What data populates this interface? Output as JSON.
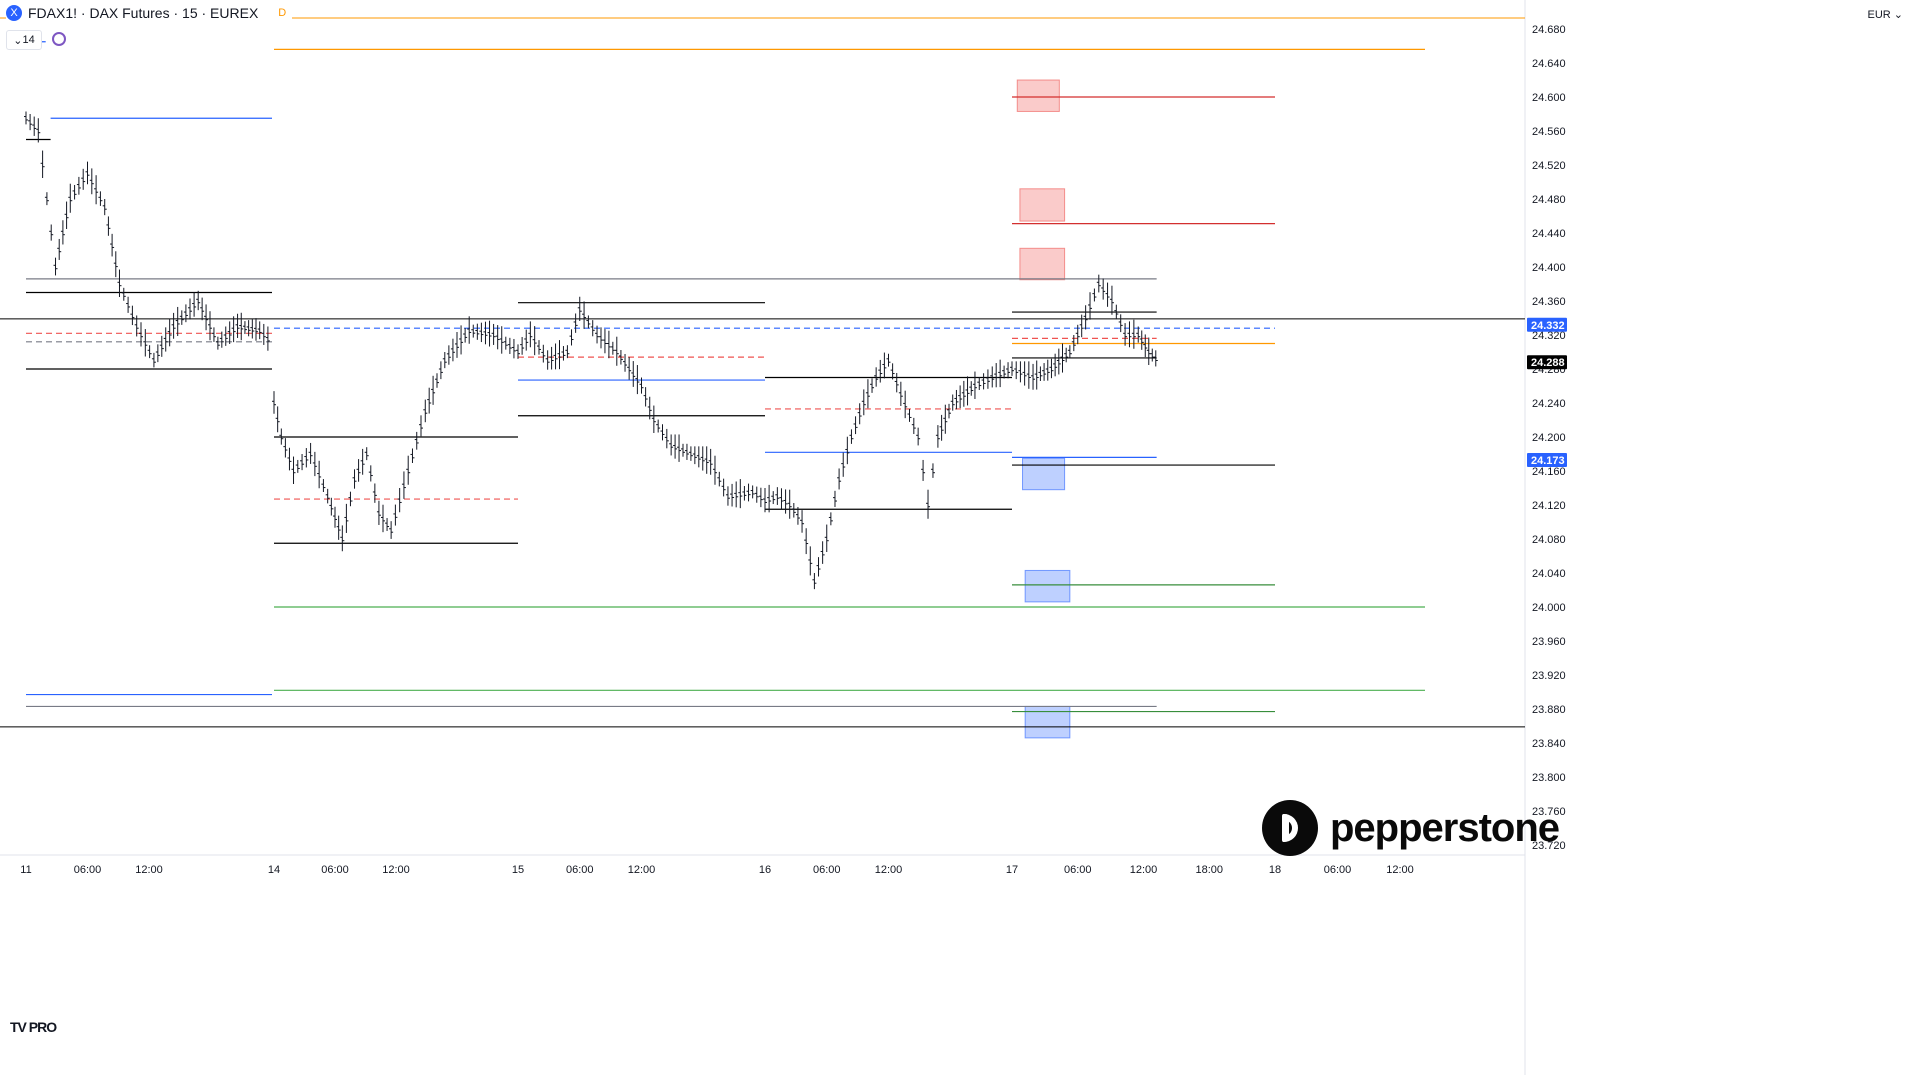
{
  "header": {
    "symbol": "FDAX1!",
    "title": "FDAX1! · DAX Futures · 15 · EUREX",
    "realtime_badge": "D",
    "indicator_count": "14",
    "currency": "EUR",
    "symbol_badge_letter": "X"
  },
  "branding": {
    "name": "pepperstone",
    "platform": "TV PRO"
  },
  "chart_data": {
    "type": "ohlc",
    "ylim": [
      23700,
      24700
    ],
    "y_ticks": [
      24680,
      24640,
      24600,
      24560,
      24520,
      24480,
      24440,
      24400,
      24360,
      24320,
      24280,
      24240,
      24200,
      24160,
      24120,
      24080,
      24040,
      24000,
      23960,
      23920,
      23880,
      23840,
      23800,
      23760,
      23720
    ],
    "y_tick_labels": [
      "24.680",
      "24.640",
      "24.600",
      "24.560",
      "24.520",
      "24.480",
      "24.440",
      "24.400",
      "24.360",
      "24.320",
      "24.280",
      "24.240",
      "24.200",
      "24.160",
      "24.120",
      "24.080",
      "24.040",
      "24.000",
      "23.960",
      "23.920",
      "23.880",
      "23.840",
      "23.800",
      "23.760",
      "23.720"
    ],
    "x_tick_labels": [
      "11",
      "06:00",
      "12:00",
      "14",
      "06:00",
      "12:00",
      "15",
      "06:00",
      "12:00",
      "16",
      "06:00",
      "12:00",
      "17",
      "06:00",
      "12:00",
      "18:00",
      "18",
      "06:00",
      "12:00"
    ],
    "price_badges": [
      {
        "label": "24.332",
        "value": 24332,
        "color": "#2962ff"
      },
      {
        "label": "24.288",
        "value": 24288,
        "color": "#000000"
      },
      {
        "label": "24.173",
        "value": 24173,
        "color": "#2962ff"
      }
    ],
    "horizontal_levels": [
      {
        "value": 24693,
        "color": "#ff9800"
      },
      {
        "value": 24339,
        "color": "#000000"
      },
      {
        "value": 23859,
        "color": "#000000"
      }
    ],
    "series_path": [
      [
        11.0,
        24575
      ],
      [
        11.05,
        24560
      ],
      [
        11.12,
        24400
      ],
      [
        11.18,
        24480
      ],
      [
        11.25,
        24510
      ],
      [
        11.32,
        24470
      ],
      [
        11.38,
        24380
      ],
      [
        11.45,
        24330
      ],
      [
        11.52,
        24290
      ],
      [
        11.6,
        24330
      ],
      [
        11.7,
        24360
      ],
      [
        11.78,
        24310
      ],
      [
        11.86,
        24330
      ],
      [
        11.95,
        24325
      ],
      [
        12.0,
        24310
      ],
      [
        14.0,
        24240
      ],
      [
        14.03,
        24200
      ],
      [
        14.08,
        24160
      ],
      [
        14.15,
        24180
      ],
      [
        14.22,
        24130
      ],
      [
        14.28,
        24080
      ],
      [
        14.33,
        24150
      ],
      [
        14.38,
        24180
      ],
      [
        14.43,
        24110
      ],
      [
        14.48,
        24090
      ],
      [
        14.55,
        24160
      ],
      [
        14.62,
        24230
      ],
      [
        14.7,
        24290
      ],
      [
        14.8,
        24325
      ],
      [
        14.9,
        24320
      ],
      [
        15.0,
        24300
      ],
      [
        15.05,
        24320
      ],
      [
        15.12,
        24290
      ],
      [
        15.2,
        24300
      ],
      [
        15.25,
        24350
      ],
      [
        15.32,
        24320
      ],
      [
        15.4,
        24300
      ],
      [
        15.45,
        24280
      ],
      [
        15.5,
        24260
      ],
      [
        15.55,
        24220
      ],
      [
        15.62,
        24190
      ],
      [
        15.7,
        24180
      ],
      [
        15.78,
        24170
      ],
      [
        15.85,
        24130
      ],
      [
        15.95,
        24135
      ],
      [
        16.0,
        24125
      ],
      [
        16.05,
        24130
      ],
      [
        16.1,
        24120
      ],
      [
        16.15,
        24100
      ],
      [
        16.2,
        24030
      ],
      [
        16.25,
        24080
      ],
      [
        16.3,
        24150
      ],
      [
        16.35,
        24200
      ],
      [
        16.4,
        24240
      ],
      [
        16.45,
        24270
      ],
      [
        16.5,
        24290
      ],
      [
        16.55,
        24250
      ],
      [
        16.62,
        24200
      ],
      [
        16.66,
        24120
      ],
      [
        16.7,
        24200
      ],
      [
        16.76,
        24240
      ],
      [
        16.85,
        24260
      ],
      [
        16.92,
        24270
      ],
      [
        17.0,
        24280
      ],
      [
        17.08,
        24270
      ],
      [
        17.15,
        24280
      ],
      [
        17.22,
        24300
      ],
      [
        17.28,
        24340
      ],
      [
        17.33,
        24380
      ],
      [
        17.38,
        24360
      ],
      [
        17.43,
        24320
      ],
      [
        17.48,
        24320
      ],
      [
        17.52,
        24300
      ],
      [
        17.56,
        24288
      ]
    ],
    "segments": [
      {
        "x0": 11.0,
        "x1": 12.0,
        "value": 24370,
        "color": "#000000",
        "style": "solid"
      },
      {
        "x0": 11.0,
        "x1": 12.0,
        "value": 24280,
        "color": "#000000",
        "style": "solid"
      },
      {
        "x0": 11.0,
        "x1": 12.0,
        "value": 24322,
        "color": "#ef5350",
        "style": "dashed"
      },
      {
        "x0": 11.0,
        "x1": 12.0,
        "value": 24312,
        "color": "#787b86",
        "style": "dashed"
      },
      {
        "x0": 11.1,
        "x1": 12.0,
        "value": 24575,
        "color": "#2962ff",
        "style": "solid"
      },
      {
        "x0": 11.0,
        "x1": 12.0,
        "value": 23897,
        "color": "#2962ff",
        "style": "solid"
      },
      {
        "x0": 11.0,
        "x1": 11.08,
        "value": 24665,
        "color": "#2962ff",
        "style": "solid"
      },
      {
        "x0": 11.0,
        "x1": 11.1,
        "value": 24550,
        "color": "#000000",
        "style": "solid"
      },
      {
        "x0": 14.0,
        "x1": 15.0,
        "value": 24200,
        "color": "#000000",
        "style": "solid"
      },
      {
        "x0": 14.0,
        "x1": 15.0,
        "value": 24075,
        "color": "#000000",
        "style": "solid"
      },
      {
        "x0": 14.0,
        "x1": 15.0,
        "value": 24127,
        "color": "#ef5350",
        "style": "dashed"
      },
      {
        "x0": 14.0,
        "x1": 18.0,
        "value": 24328,
        "color": "#2962ff",
        "style": "dashed"
      },
      {
        "x0": 15.0,
        "x1": 16.0,
        "value": 24358,
        "color": "#000000",
        "style": "solid"
      },
      {
        "x0": 15.0,
        "x1": 16.0,
        "value": 24225,
        "color": "#000000",
        "style": "solid"
      },
      {
        "x0": 15.0,
        "x1": 16.0,
        "value": 24294,
        "color": "#ef5350",
        "style": "dashed"
      },
      {
        "x0": 15.0,
        "x1": 16.0,
        "value": 24267,
        "color": "#2962ff",
        "style": "solid"
      },
      {
        "x0": 16.0,
        "x1": 17.0,
        "value": 24270,
        "color": "#000000",
        "style": "solid"
      },
      {
        "x0": 16.0,
        "x1": 17.0,
        "value": 24115,
        "color": "#000000",
        "style": "solid"
      },
      {
        "x0": 16.0,
        "x1": 17.0,
        "value": 24233,
        "color": "#ef5350",
        "style": "dashed"
      },
      {
        "x0": 16.0,
        "x1": 17.0,
        "value": 24182,
        "color": "#2962ff",
        "style": "solid"
      },
      {
        "x0": 17.0,
        "x1": 17.55,
        "value": 24347,
        "color": "#000000",
        "style": "solid"
      },
      {
        "x0": 17.0,
        "x1": 17.55,
        "value": 24293,
        "color": "#000000",
        "style": "solid"
      },
      {
        "x0": 17.0,
        "x1": 17.55,
        "value": 24316,
        "color": "#ef5350",
        "style": "dashed"
      },
      {
        "x0": 17.0,
        "x1": 17.55,
        "value": 24176,
        "color": "#2962ff",
        "style": "solid"
      },
      {
        "x0": 11.0,
        "x1": 17.55,
        "value": 24386,
        "color": "#787b86",
        "style": "solid"
      },
      {
        "x0": 11.0,
        "x1": 17.55,
        "value": 23883,
        "color": "#787b86",
        "style": "solid"
      },
      {
        "x0": 14.0,
        "x1": 18.6,
        "value": 24656,
        "color": "#ff9800",
        "style": "solid"
      },
      {
        "x0": 14.0,
        "x1": 18.6,
        "value": 24000,
        "color": "#4caf50",
        "style": "solid"
      },
      {
        "x0": 14.0,
        "x1": 18.6,
        "value": 23902,
        "color": "#4caf50",
        "style": "solid"
      },
      {
        "x0": 17.0,
        "x1": 18.0,
        "value": 24600,
        "color": "#d32f2f",
        "style": "solid"
      },
      {
        "x0": 17.0,
        "x1": 18.0,
        "value": 24451,
        "color": "#d32f2f",
        "style": "solid"
      },
      {
        "x0": 17.0,
        "x1": 18.0,
        "value": 24310,
        "color": "#ff9800",
        "style": "solid"
      },
      {
        "x0": 17.0,
        "x1": 18.0,
        "value": 24167,
        "color": "#000000",
        "style": "solid"
      },
      {
        "x0": 17.0,
        "x1": 18.0,
        "value": 24026,
        "color": "#388e3c",
        "style": "solid"
      },
      {
        "x0": 17.0,
        "x1": 18.0,
        "value": 23877,
        "color": "#388e3c",
        "style": "solid"
      }
    ],
    "zones": [
      {
        "x0": 17.02,
        "x1": 17.18,
        "y0": 24583,
        "y1": 24620,
        "color": "#ef5350"
      },
      {
        "x0": 17.03,
        "x1": 17.2,
        "y0": 24454,
        "y1": 24492,
        "color": "#ef5350"
      },
      {
        "x0": 17.03,
        "x1": 17.2,
        "y0": 24385,
        "y1": 24422,
        "color": "#ef5350"
      },
      {
        "x0": 17.04,
        "x1": 17.2,
        "y0": 24138,
        "y1": 24175,
        "color": "#2962ff"
      },
      {
        "x0": 17.05,
        "x1": 17.22,
        "y0": 24006,
        "y1": 24043,
        "color": "#2962ff"
      },
      {
        "x0": 17.05,
        "x1": 17.22,
        "y0": 23846,
        "y1": 23883,
        "color": "#2962ff"
      }
    ]
  }
}
